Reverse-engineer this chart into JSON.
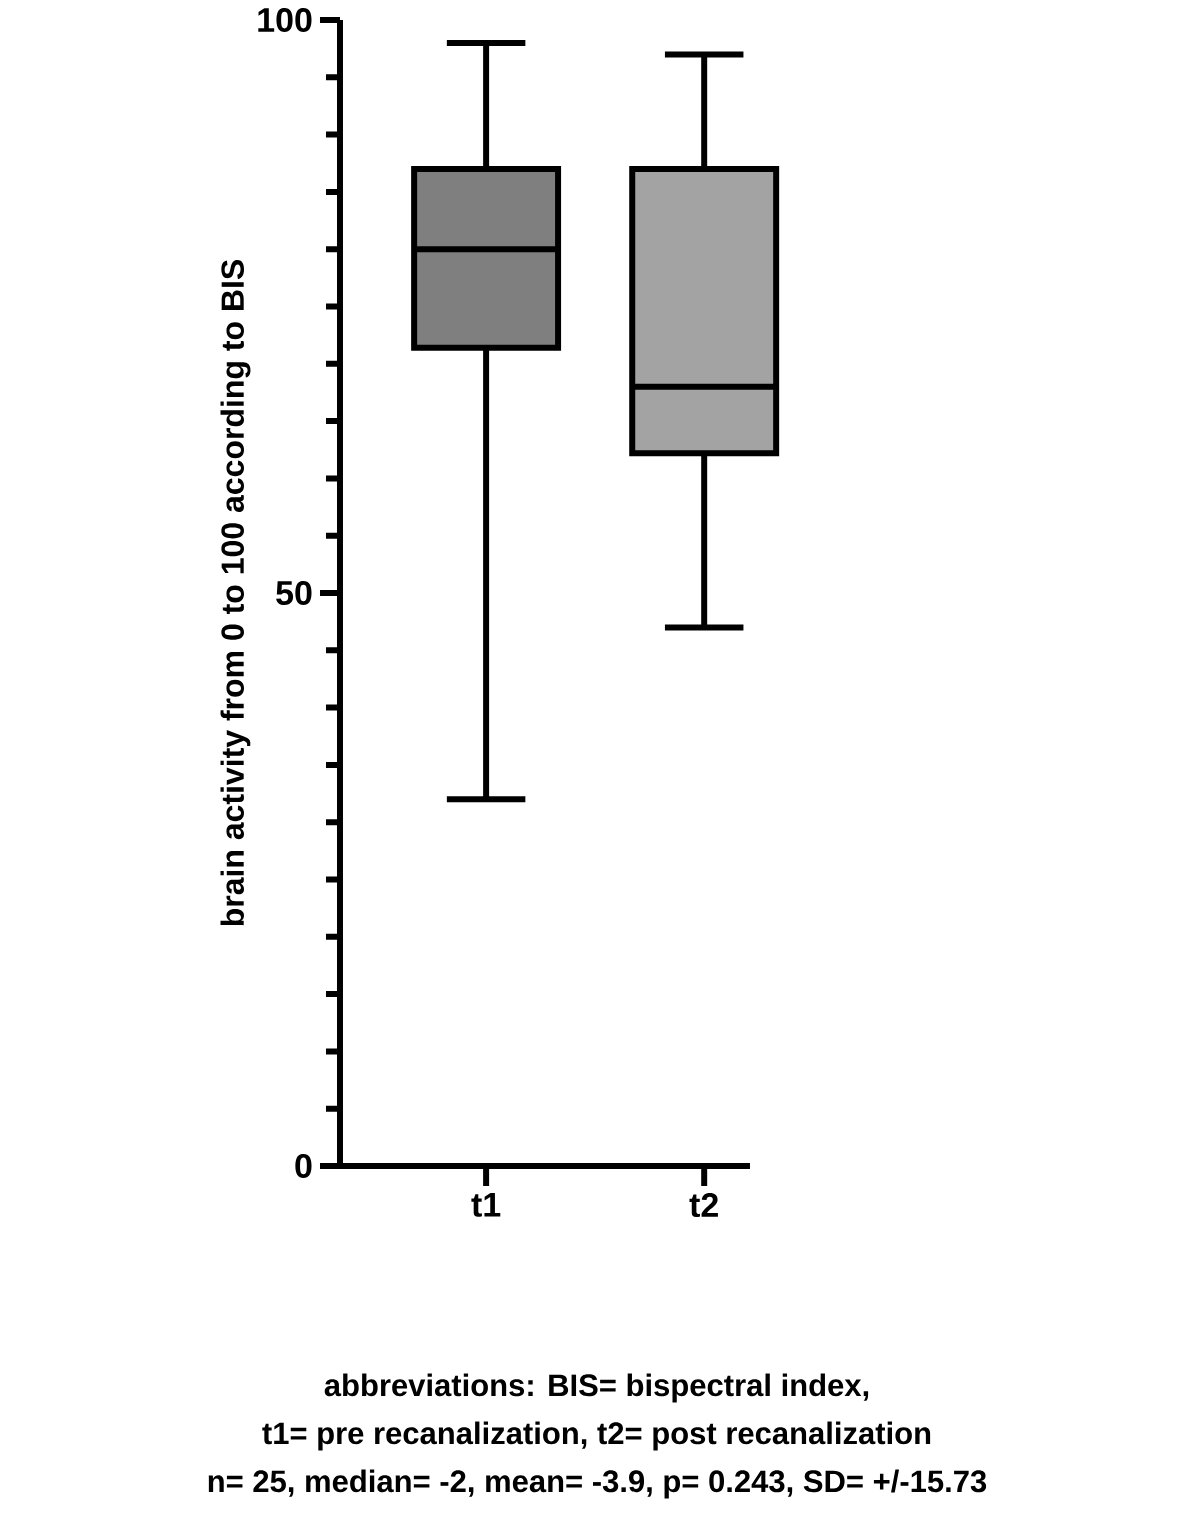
{
  "chart_data": {
    "type": "box",
    "categories": [
      "t1",
      "t2"
    ],
    "boxes": [
      {
        "low": 32,
        "q1": 71.4,
        "median": 80,
        "q3": 87,
        "high": 98
      },
      {
        "low": 47,
        "q1": 62.2,
        "median": 68,
        "q3": 87,
        "high": 97
      }
    ],
    "colors": [
      "#7f7f7f",
      "#a3a3a3"
    ],
    "ylim": [
      0,
      100
    ],
    "yticks": [
      0,
      {
        "value": 5,
        "label": null
      },
      {
        "value": 10,
        "label": null
      },
      {
        "value": 15,
        "label": null
      },
      {
        "value": 20,
        "label": null
      },
      {
        "value": 25,
        "label": null
      },
      {
        "value": 30,
        "label": null
      },
      {
        "value": 35,
        "label": null
      },
      {
        "value": 40,
        "label": null
      },
      {
        "value": 45,
        "label": null
      },
      50,
      {
        "value": 55,
        "label": null
      },
      {
        "value": 60,
        "label": null
      },
      {
        "value": 65,
        "label": null
      },
      {
        "value": 70,
        "label": null
      },
      {
        "value": 75,
        "label": null
      },
      {
        "value": 80,
        "label": null
      },
      {
        "value": 85,
        "label": null
      },
      {
        "value": 90,
        "label": null
      },
      {
        "value": 95,
        "label": null
      },
      100
    ],
    "ylabel": "brain activity from 0 to 100 according to BIS",
    "annotations": [
      "abbreviations: BIS= bispectral index,",
      "t1= pre recanalization, t2= post recanalization",
      "n= 25, median= -2, mean= -3.9, p= 0.243, SD= +/-15.73"
    ]
  }
}
